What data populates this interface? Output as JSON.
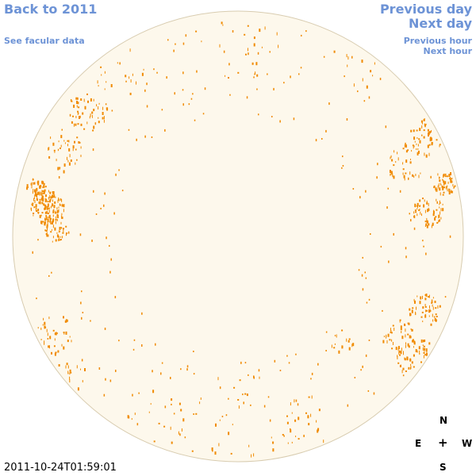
{
  "nav": {
    "back": "Back to 2011",
    "facular": "See facular data",
    "prev_day": "Previous day",
    "next_day": "Next day",
    "prev_hour": "Previous hour",
    "next_hour": "Next hour"
  },
  "compass": {
    "north": "N",
    "east": "E",
    "center": "+",
    "west": "W",
    "south": "S"
  },
  "timestamp": "2011-10-24T01:59:01",
  "colors": {
    "disk_fill": "#fdf8ec",
    "disk_border": "#d8ccb0",
    "facula": "#f08a00",
    "link": "#6d93d6"
  }
}
